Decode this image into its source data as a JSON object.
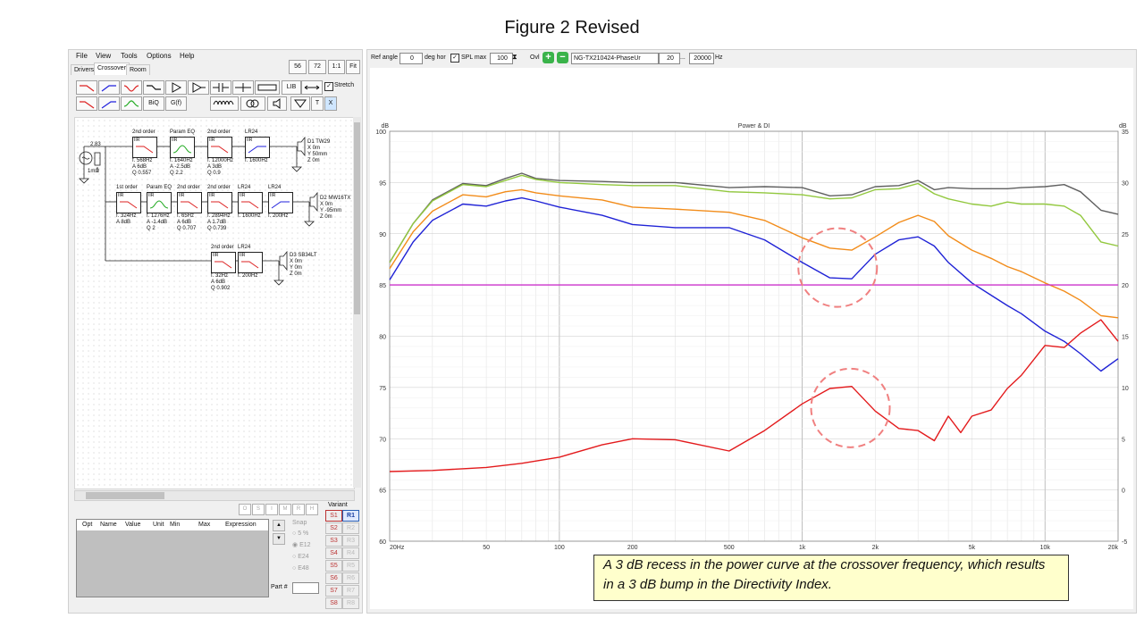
{
  "figure": {
    "title": "Figure 2 Revised"
  },
  "menu": [
    "File",
    "View",
    "Tools",
    "Options",
    "Help"
  ],
  "tabs": [
    "Drivers",
    "Crossover",
    "Room"
  ],
  "view_buttons": [
    "56",
    "72",
    "1:1",
    "Fit"
  ],
  "toolbar": {
    "lib": "LIB",
    "biq": "BiQ",
    "gf": "G(f)",
    "stretch": "Stretch",
    "t": "T",
    "x": "X"
  },
  "schematic": {
    "source": {
      "voltage": "2.83",
      "resistance": "1mΩ"
    },
    "drivers": [
      {
        "name": "D1 TW29",
        "params": [
          "X 0m",
          "Y 50mm",
          "Z 0m"
        ]
      },
      {
        "name": "D2 MW16TX",
        "params": [
          "X 0m",
          "Y -95mm",
          "Z 0m"
        ]
      },
      {
        "name": "D3 SB34LT",
        "params": [
          "X 0m",
          "Y 0m",
          "Z 0m"
        ]
      }
    ],
    "row1": [
      {
        "title": "2nd order",
        "type": "IIR",
        "params": [
          "f. 568Hz",
          "A 6dB",
          "Q 0.557"
        ]
      },
      {
        "title": "Param EQ",
        "type": "IIR",
        "params": [
          "f. 1640Hz",
          "A -2.5dB",
          "Q 2.2"
        ]
      },
      {
        "title": "2nd order",
        "type": "IIR",
        "params": [
          "f. 12000Hz",
          "A 3dB",
          "Q 0.9"
        ]
      },
      {
        "title": "LR24",
        "type": "IIR",
        "params": [
          "f. 1600Hz"
        ]
      }
    ],
    "row2": [
      {
        "title": "1st order",
        "type": "IIR",
        "params": [
          "f. 324Hz",
          "A 8dB"
        ]
      },
      {
        "title": "Param EQ",
        "type": "IIR",
        "params": [
          "f. 1276Hz",
          "A -1.4dB",
          "Q 2"
        ]
      },
      {
        "title": "2nd order",
        "type": "IIR",
        "params": [
          "f. 65Hz",
          "A 6dB",
          "Q 0.707"
        ]
      },
      {
        "title": "2nd order",
        "type": "IIR",
        "params": [
          "f. 2894Hz",
          "A 1.7dB",
          "Q 0.739"
        ]
      },
      {
        "title": "LR24",
        "type": "IIR",
        "params": [
          "f. 1600Hz"
        ]
      },
      {
        "title": "LR24",
        "type": "IIR",
        "params": [
          "f. 200Hz"
        ]
      }
    ],
    "row3": [
      {
        "title": "2nd order",
        "type": "IIR",
        "params": [
          "f. 32Hz",
          "A 6dB",
          "Q 0.902"
        ]
      },
      {
        "title": "LR24",
        "type": "IIR",
        "params": [
          "f. 200Hz"
        ]
      }
    ]
  },
  "param_table": {
    "headers": [
      "Opt",
      "Name",
      "Value",
      "Unit",
      "Min",
      "Max",
      "Expression"
    ],
    "part_label": "Part #"
  },
  "opt_buttons": [
    "O",
    "S",
    "I",
    "M",
    "R",
    "H"
  ],
  "snap": {
    "label": "Snap",
    "options": [
      "5 %",
      "E12",
      "E24",
      "E48"
    ],
    "selected": "E12"
  },
  "variant": {
    "label": "Variant",
    "s": [
      "S1",
      "S2",
      "S3",
      "S4",
      "S5",
      "S6",
      "S7",
      "S8"
    ],
    "r": [
      "R1",
      "R2",
      "R3",
      "R4",
      "R5",
      "R6",
      "R7",
      "R8"
    ],
    "active": "R1"
  },
  "topbar": {
    "ref_angle_label": "Ref angle",
    "ref_angle": "0",
    "deg_label": "deg hor",
    "spl_max_label": "SPL max",
    "spl_max": "100",
    "ovl_label": "Ovl",
    "file": "NG-TX210424-PhaseUr",
    "fmin": "20",
    "dots": "...",
    "fmax": "20000",
    "hz": "Hz"
  },
  "chart_data": {
    "type": "line",
    "title": "Power & DI",
    "ylabel_left": "dB",
    "ylabel_right": "dB",
    "x_scale": "log",
    "xlim": [
      20,
      20000
    ],
    "ylim_left": [
      60,
      100
    ],
    "ylim_right": [
      -5,
      35
    ],
    "x_ticks": [
      {
        "v": 20,
        "l": "20Hz"
      },
      {
        "v": 50,
        "l": "50"
      },
      {
        "v": 100,
        "l": "100"
      },
      {
        "v": 200,
        "l": "200"
      },
      {
        "v": 500,
        "l": "500"
      },
      {
        "v": 1000,
        "l": "1k"
      },
      {
        "v": 2000,
        "l": "2k"
      },
      {
        "v": 5000,
        "l": "5k"
      },
      {
        "v": 10000,
        "l": "10k"
      },
      {
        "v": 20000,
        "l": "20k"
      }
    ],
    "y_ticks_left": [
      100,
      95,
      90,
      85,
      80,
      75,
      70,
      65,
      60
    ],
    "y_ticks_right": [
      35,
      30,
      25,
      20,
      15,
      10,
      5,
      0,
      -5
    ],
    "grid": true,
    "series": [
      {
        "name": "",
        "color": "#606060",
        "axis": "left",
        "x": [
          20,
          25,
          30,
          40,
          50,
          60,
          70,
          80,
          100,
          150,
          200,
          300,
          500,
          700,
          1000,
          1300,
          1600,
          2000,
          2500,
          3000,
          3500,
          4000,
          5000,
          6000,
          7000,
          8000,
          10000,
          12000,
          14000,
          17000,
          20000
        ],
        "y": [
          87.2,
          91,
          93.3,
          94.9,
          94.7,
          95.4,
          95.9,
          95.4,
          95.2,
          95.1,
          95,
          95,
          94.5,
          94.6,
          94.5,
          93.7,
          93.8,
          94.6,
          94.7,
          95.2,
          94.3,
          94.5,
          94.4,
          94.4,
          94.4,
          94.5,
          94.6,
          94.8,
          94.1,
          92.3,
          91.9
        ]
      },
      {
        "name": "",
        "color": "#92c83e",
        "axis": "left",
        "x": [
          20,
          25,
          30,
          40,
          50,
          60,
          70,
          80,
          100,
          150,
          200,
          300,
          500,
          700,
          1000,
          1300,
          1600,
          2000,
          2500,
          3000,
          3500,
          4000,
          5000,
          6000,
          7000,
          8000,
          10000,
          12000,
          14000,
          17000,
          20000
        ],
        "y": [
          87.2,
          91,
          93.2,
          94.8,
          94.6,
          95.2,
          95.7,
          95.3,
          95,
          94.8,
          94.7,
          94.7,
          94.1,
          94,
          93.8,
          93.4,
          93.5,
          94.3,
          94.4,
          94.9,
          93.9,
          93.4,
          92.9,
          92.7,
          93.1,
          92.9,
          92.9,
          92.7,
          91.8,
          89.2,
          88.8
        ]
      },
      {
        "name": "",
        "color": "#f28c1a",
        "axis": "left",
        "x": [
          20,
          25,
          30,
          40,
          50,
          60,
          70,
          80,
          100,
          150,
          200,
          300,
          500,
          700,
          1000,
          1300,
          1600,
          2000,
          2500,
          3000,
          3500,
          4000,
          5000,
          6000,
          7000,
          8000,
          10000,
          12000,
          14000,
          17000,
          20000
        ],
        "y": [
          86.6,
          90.2,
          92.2,
          93.8,
          93.6,
          94.1,
          94.3,
          94,
          93.7,
          93.3,
          92.6,
          92.4,
          92.1,
          91.3,
          89.6,
          88.6,
          88.4,
          89.7,
          91.1,
          91.8,
          91.2,
          89.8,
          88.4,
          87.6,
          86.8,
          86.3,
          85.2,
          84.4,
          83.5,
          82,
          81.8
        ]
      },
      {
        "name": "",
        "color": "#1f22d6",
        "axis": "left",
        "x": [
          20,
          25,
          30,
          40,
          50,
          60,
          70,
          80,
          100,
          150,
          200,
          300,
          500,
          700,
          1000,
          1300,
          1600,
          2000,
          2500,
          3000,
          3500,
          4000,
          5000,
          6000,
          7000,
          8000,
          10000,
          12000,
          14000,
          17000,
          20000
        ],
        "y": [
          85.5,
          89.2,
          91.3,
          92.9,
          92.7,
          93.2,
          93.5,
          93.2,
          92.6,
          91.8,
          90.9,
          90.6,
          90.6,
          89.4,
          87.2,
          85.7,
          85.6,
          88,
          89.4,
          89.7,
          88.8,
          87.2,
          85.2,
          84,
          83,
          82.2,
          80.5,
          79.5,
          78.3,
          76.6,
          77.8
        ]
      },
      {
        "name": "",
        "color": "#e31a1c",
        "axis": "right",
        "x": [
          20,
          30,
          50,
          70,
          100,
          150,
          200,
          300,
          500,
          700,
          1000,
          1300,
          1600,
          2000,
          2500,
          3000,
          3500,
          4000,
          4500,
          5000,
          6000,
          7000,
          8000,
          10000,
          12000,
          14000,
          17000,
          20000
        ],
        "y": [
          1.8,
          1.9,
          2.2,
          2.6,
          3.2,
          4.4,
          5,
          4.9,
          3.8,
          5.8,
          8.4,
          9.9,
          10.1,
          7.7,
          6,
          5.8,
          4.8,
          7.2,
          5.6,
          7.2,
          7.8,
          9.9,
          11.2,
          14.1,
          13.9,
          15.3,
          16.6,
          14.5
        ]
      },
      {
        "name": "",
        "color": "#cc33cc",
        "axis": "right",
        "x": [
          20,
          20000
        ],
        "y": [
          20,
          20
        ]
      }
    ],
    "annotations": [
      "A 3 dB recess in the power curve at the crossover frequency, which results in a 3 dB bump in the Directivity Index."
    ]
  }
}
